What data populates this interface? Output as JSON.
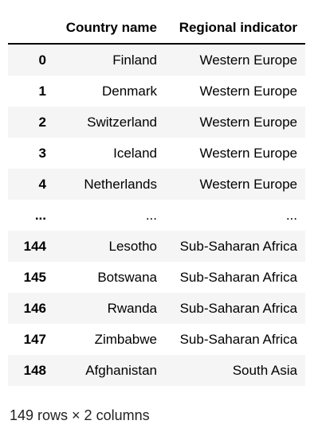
{
  "table": {
    "columns": [
      "",
      "Country name",
      "Regional indicator"
    ],
    "rows": [
      {
        "index": "0",
        "country": "Finland",
        "region": "Western Europe"
      },
      {
        "index": "1",
        "country": "Denmark",
        "region": "Western Europe"
      },
      {
        "index": "2",
        "country": "Switzerland",
        "region": "Western Europe"
      },
      {
        "index": "3",
        "country": "Iceland",
        "region": "Western Europe"
      },
      {
        "index": "4",
        "country": "Netherlands",
        "region": "Western Europe"
      },
      {
        "index": "...",
        "country": "...",
        "region": "..."
      },
      {
        "index": "144",
        "country": "Lesotho",
        "region": "Sub-Saharan Africa"
      },
      {
        "index": "145",
        "country": "Botswana",
        "region": "Sub-Saharan Africa"
      },
      {
        "index": "146",
        "country": "Rwanda",
        "region": "Sub-Saharan Africa"
      },
      {
        "index": "147",
        "country": "Zimbabwe",
        "region": "Sub-Saharan Africa"
      },
      {
        "index": "148",
        "country": "Afghanistan",
        "region": "South Asia"
      }
    ]
  },
  "footer": {
    "shape_text": "149 rows × 2 columns"
  },
  "colors": {
    "stripe": "#f5f5f5",
    "header_rule": "#000000"
  }
}
